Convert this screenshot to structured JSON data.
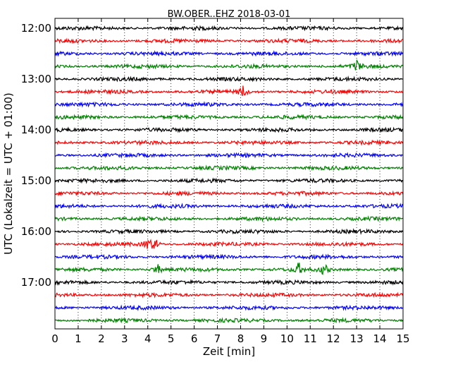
{
  "chart_data": {
    "type": "line",
    "title": "BW.OBER..EHZ 2018-03-01",
    "xlabel": "Zeit  [min]",
    "ylabel": "UTC (Lokalzeit = UTC + 01:00)",
    "xlim": [
      0,
      15
    ],
    "x_ticks": [
      "0",
      "1",
      "2",
      "3",
      "4",
      "5",
      "6",
      "7",
      "8",
      "9",
      "10",
      "11",
      "12",
      "13",
      "14",
      "15"
    ],
    "y_ticks": [
      "12:00",
      "13:00",
      "14:00",
      "15:00",
      "16:00",
      "17:00"
    ],
    "grid": "vertical dotted",
    "colors": [
      "#000000",
      "#ff0000",
      "#0000ff",
      "#008000"
    ],
    "trace_start_times": [
      "12:00",
      "12:15",
      "12:30",
      "12:45",
      "13:00",
      "13:15",
      "13:30",
      "13:45",
      "14:00",
      "14:15",
      "14:30",
      "14:45",
      "15:00",
      "15:15",
      "15:30",
      "15:45",
      "16:00",
      "16:15",
      "16:30",
      "16:45",
      "17:00",
      "17:15",
      "17:30",
      "17:45"
    ],
    "events": [
      {
        "trace": "16:15",
        "minute": 4.0
      },
      {
        "trace": "16:15",
        "minute": 4.3
      },
      {
        "trace": "16:45",
        "minute": 4.4
      },
      {
        "trace": "16:45",
        "minute": 10.5
      },
      {
        "trace": "16:45",
        "minute": 11.6
      },
      {
        "trace": "13:15",
        "minute": 8.1
      },
      {
        "trace": "12:45",
        "minute": 13.0
      }
    ]
  }
}
